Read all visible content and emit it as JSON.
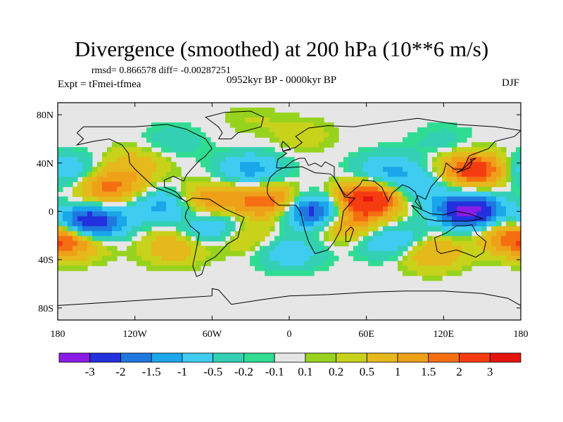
{
  "chart_data": {
    "type": "heatmap",
    "title": "Divergence (smoothed) at 200 hPa (10**6 m/s)",
    "subtitle_stats": "rmsd= 0.866578 diff= -0.00287251",
    "experiment": "Expt = tFmei-tfmea",
    "period": "0952kyr BP - 0000kyr BP",
    "season": "DJF",
    "x_ticks": [
      "180",
      "120W",
      "60W",
      "0",
      "60E",
      "120E",
      "180"
    ],
    "y_ticks": [
      "80N",
      "40N",
      "0",
      "40S",
      "80S"
    ],
    "x_range": [
      -180,
      180
    ],
    "y_range": [
      -90,
      90
    ],
    "colorbar_labels": [
      "-3",
      "-2",
      "-1.5",
      "-1",
      "-0.5",
      "-0.2",
      "-0.1",
      "0.1",
      "0.2",
      "0.5",
      "1",
      "1.5",
      "2",
      "3"
    ],
    "colorbar_colors": [
      "#8a1ce6",
      "#2330dd",
      "#1f78e0",
      "#19a6ea",
      "#3ecdf0",
      "#33d0b4",
      "#2fdc92",
      "#e6e6e6",
      "#97d31e",
      "#c8d21a",
      "#e5b81c",
      "#efa019",
      "#f56e12",
      "#f53c10",
      "#e4140f"
    ],
    "bins": [
      -3,
      -2,
      -1.5,
      -1,
      -0.5,
      -0.2,
      -0.1,
      0.1,
      0.2,
      0.5,
      1,
      1.5,
      2,
      3
    ],
    "field_features": [
      {
        "lon": -155,
        "lat": -10,
        "value": -3.1
      },
      {
        "lon": -140,
        "lat": 20,
        "value": 1.8
      },
      {
        "lon": -170,
        "lat": -25,
        "value": 2.0
      },
      {
        "lon": -120,
        "lat": 40,
        "value": 0.9
      },
      {
        "lon": -175,
        "lat": 35,
        "value": -1.3
      },
      {
        "lon": -100,
        "lat": 5,
        "value": -1.2
      },
      {
        "lon": -60,
        "lat": 10,
        "value": 1.4
      },
      {
        "lon": -55,
        "lat": -15,
        "value": -1.6
      },
      {
        "lon": -30,
        "lat": 35,
        "value": -1.4
      },
      {
        "lon": -15,
        "lat": 8,
        "value": 2.0
      },
      {
        "lon": -40,
        "lat": -20,
        "value": 1.2
      },
      {
        "lon": 20,
        "lat": 0,
        "value": -2.8
      },
      {
        "lon": 45,
        "lat": -10,
        "value": 1.5
      },
      {
        "lon": 60,
        "lat": 10,
        "value": 3.2
      },
      {
        "lon": 75,
        "lat": 35,
        "value": -1.2
      },
      {
        "lon": 100,
        "lat": 20,
        "value": -1.0
      },
      {
        "lon": 145,
        "lat": 35,
        "value": 3.0
      },
      {
        "lon": 140,
        "lat": 0,
        "value": -3.4
      },
      {
        "lon": 80,
        "lat": -25,
        "value": -1.3
      },
      {
        "lon": 110,
        "lat": -35,
        "value": 1.3
      },
      {
        "lon": 170,
        "lat": -20,
        "value": 1.2
      },
      {
        "lon": -90,
        "lat": -30,
        "value": 1.0
      },
      {
        "lon": 0,
        "lat": -35,
        "value": -1.0
      },
      {
        "lon": -90,
        "lat": 60,
        "value": -0.6
      },
      {
        "lon": 10,
        "lat": 65,
        "value": 0.6
      },
      {
        "lon": 120,
        "lat": 60,
        "value": -0.5
      },
      {
        "lon": -30,
        "lat": 80,
        "value": 0.5
      }
    ]
  }
}
